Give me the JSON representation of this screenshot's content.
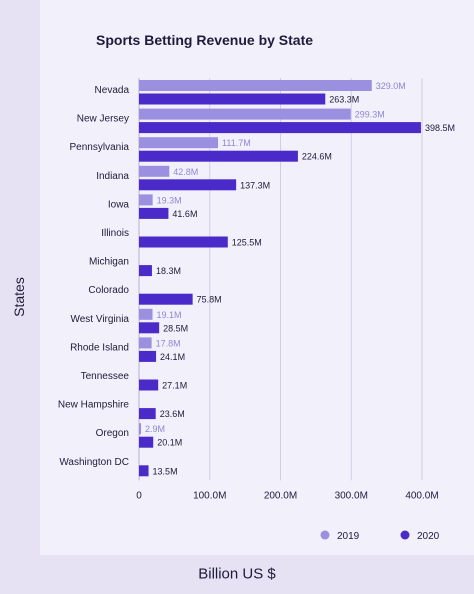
{
  "chart_data": {
    "type": "bar",
    "orientation": "horizontal",
    "title": "Sports Betting Revenue by State",
    "xlabel": "Billion US $",
    "ylabel": "States",
    "xlim": [
      0,
      400
    ],
    "xticks": [
      "0",
      "100.0M",
      "200.0M",
      "300.0M",
      "400.0M"
    ],
    "grid": true,
    "legend_position": "bottom-right",
    "categories": [
      "Nevada",
      "New Jersey",
      "Pennsylvania",
      "Indiana",
      "Iowa",
      "Illinois",
      "Michigan",
      "Colorado",
      "West Virginia",
      "Rhode Island",
      "Tennessee",
      "New Hampshire",
      "Oregon",
      "Washington DC"
    ],
    "series": [
      {
        "name": "2019",
        "color": "#9b8fe0",
        "values": [
          329.0,
          299.3,
          111.7,
          42.8,
          19.3,
          null,
          null,
          null,
          19.1,
          17.8,
          null,
          null,
          2.9,
          null
        ],
        "labels": [
          "329.0M",
          "299.3M",
          "111.7M",
          "42.8M",
          "19.3M",
          "",
          "",
          "",
          "19.1M",
          "17.8M",
          "",
          "",
          "2.9M",
          ""
        ]
      },
      {
        "name": "2020",
        "color": "#4a2bc9",
        "values": [
          263.3,
          398.5,
          224.6,
          137.3,
          41.6,
          125.5,
          18.3,
          75.8,
          28.5,
          24.1,
          27.1,
          23.6,
          20.1,
          13.5
        ],
        "labels": [
          "263.3M",
          "398.5M",
          "224.6M",
          "137.3M",
          "41.6M",
          "125.5M",
          "18.3M",
          "75.8M",
          "28.5M",
          "24.1M",
          "27.1M",
          "23.6M",
          "20.1M",
          "13.5M"
        ]
      }
    ]
  }
}
